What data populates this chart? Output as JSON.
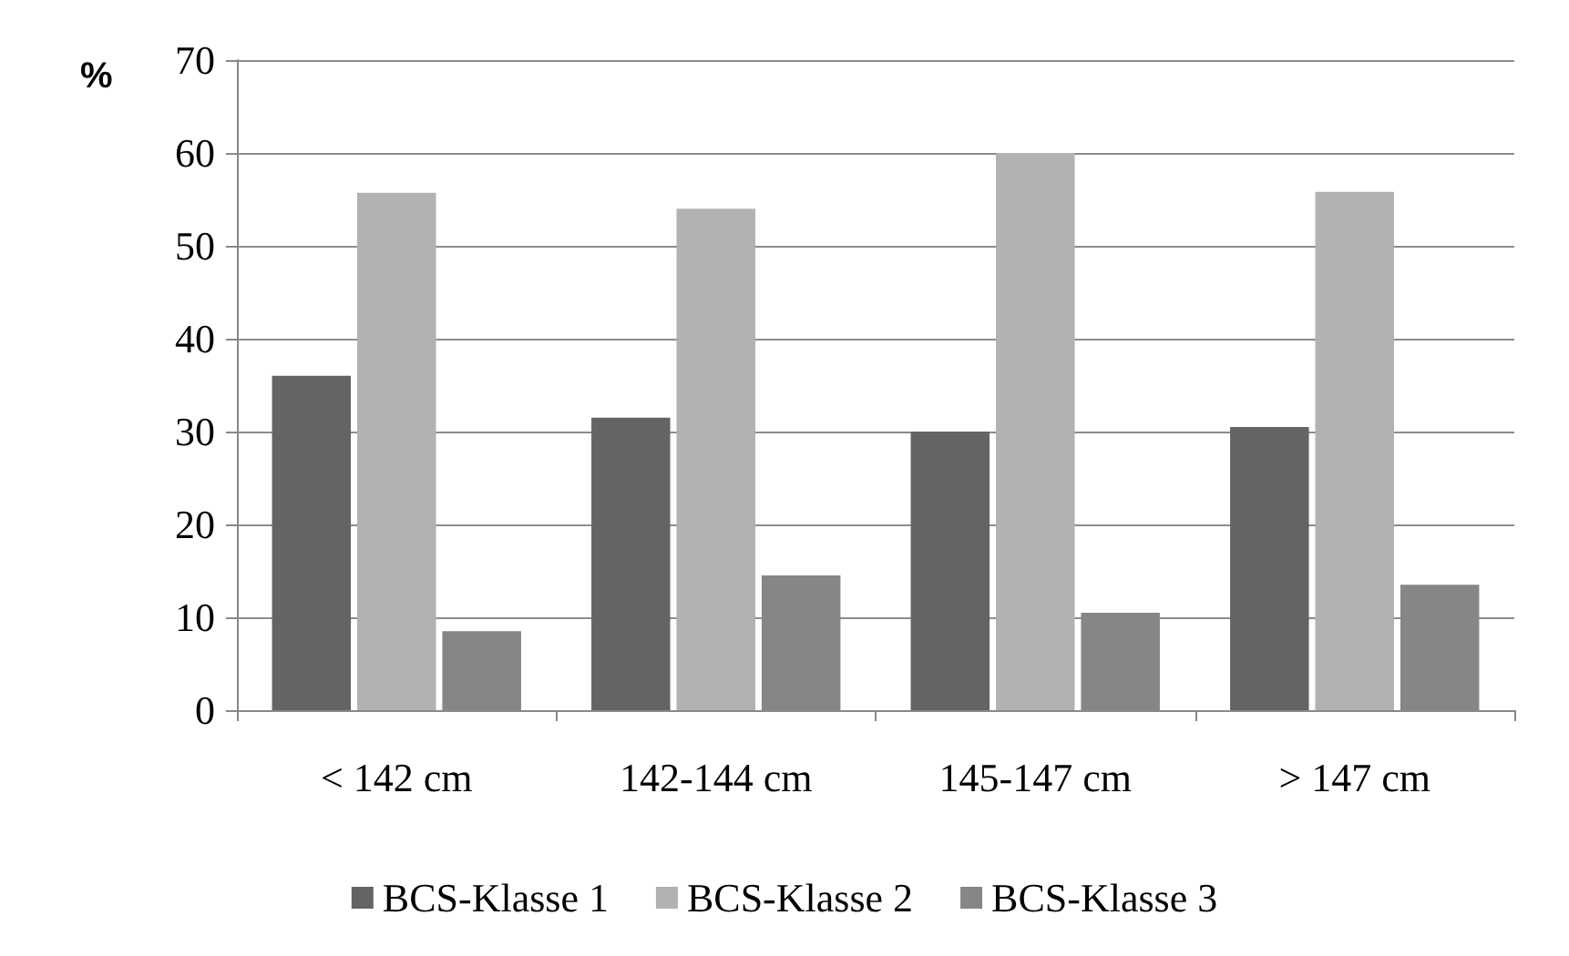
{
  "chart_data": {
    "type": "bar",
    "ylabel": "%",
    "categories": [
      "< 142 cm",
      "142-144 cm",
      "145-147 cm",
      "> 147 cm"
    ],
    "series": [
      {
        "name": "BCS-Klasse 1",
        "color": "#646464",
        "values": [
          36,
          31.5,
          30,
          30.5
        ]
      },
      {
        "name": "BCS-Klasse 2",
        "color": "#b2b2b2",
        "values": [
          55.7,
          54,
          60,
          55.8
        ]
      },
      {
        "name": "BCS-Klasse 3",
        "color": "#868686",
        "values": [
          8.5,
          14.5,
          10.5,
          13.5
        ]
      }
    ],
    "ylim": [
      0,
      70
    ],
    "yticks": [
      0,
      10,
      20,
      30,
      40,
      50,
      60,
      70
    ],
    "grid": "y",
    "legend": "bottom"
  }
}
